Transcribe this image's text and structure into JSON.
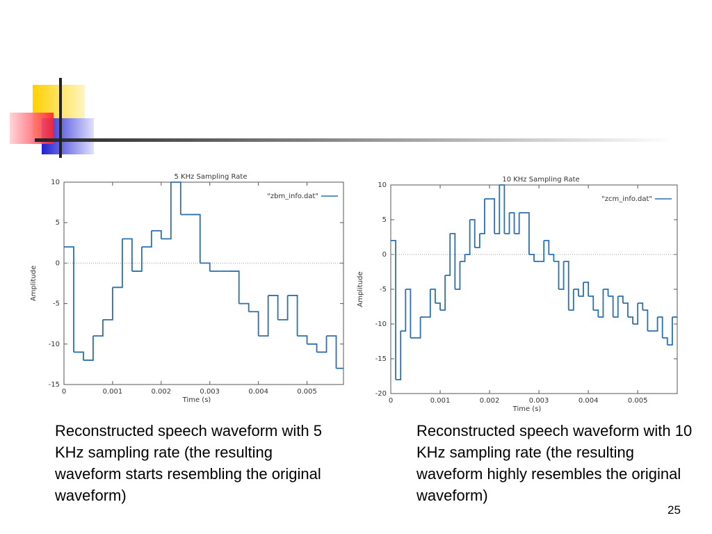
{
  "chart_data": [
    {
      "type": "step",
      "title": "5 KHz Sampling Rate",
      "x_label": "Time (s)",
      "y_label": "Amplitude",
      "x": [
        0,
        0.0002,
        0.0004,
        0.0006,
        0.0008,
        0.001,
        0.0012,
        0.0014,
        0.0016,
        0.0018,
        0.002,
        0.0022,
        0.0024,
        0.0026,
        0.0028,
        0.003,
        0.0032,
        0.0034,
        0.0036,
        0.0038,
        0.004,
        0.0042,
        0.0044,
        0.0046,
        0.0048,
        0.005,
        0.0052,
        0.0054,
        0.0056
      ],
      "series": [
        {
          "name": "\"zbm_info.dat\"",
          "color": "#2a6fb0",
          "values": [
            2,
            -11,
            -12,
            -9,
            -7,
            -3,
            3,
            -1,
            2,
            4,
            3,
            10,
            6,
            6,
            0,
            -1,
            -1,
            -1,
            -5,
            -6,
            -9,
            -4,
            -7,
            -4,
            -9,
            -10,
            -11,
            -9,
            -13
          ]
        }
      ],
      "xlim": [
        0,
        0.00575
      ],
      "xticks": [
        0,
        0.001,
        0.002,
        0.003,
        0.004,
        0.005
      ],
      "ylim": [
        -15,
        10
      ],
      "yticks": [
        -15,
        -10,
        -5,
        0,
        5,
        10
      ],
      "zero_line": true,
      "legend": "upper right"
    },
    {
      "type": "step",
      "title": "10 KHz Sampling Rate",
      "x_label": "Time (s)",
      "y_label": "Amplitude",
      "x": [
        0,
        0.0001,
        0.0002,
        0.0003,
        0.0004,
        0.0005,
        0.0006,
        0.0007,
        0.0008,
        0.0009,
        0.001,
        0.0011,
        0.0012,
        0.0013,
        0.0014,
        0.0015,
        0.0016,
        0.0017,
        0.0018,
        0.0019,
        0.002,
        0.0021,
        0.0022,
        0.0023,
        0.0024,
        0.0025,
        0.0026,
        0.0027,
        0.0028,
        0.0029,
        0.003,
        0.0031,
        0.0032,
        0.0033,
        0.0034,
        0.0035,
        0.0036,
        0.0037,
        0.0038,
        0.0039,
        0.004,
        0.0041,
        0.0042,
        0.0043,
        0.0044,
        0.0045,
        0.0046,
        0.0047,
        0.0048,
        0.0049,
        0.005,
        0.0051,
        0.0052,
        0.0053,
        0.0054,
        0.0055,
        0.0056,
        0.0057
      ],
      "series": [
        {
          "name": "\"zcm_info.dat\"",
          "color": "#2a6fb0",
          "values": [
            2,
            -18,
            -11,
            -5,
            -12,
            -12,
            -9,
            -9,
            -5,
            -7,
            -8,
            -3,
            3,
            -5,
            -1,
            0,
            5,
            1,
            3,
            8,
            8,
            3,
            10,
            3,
            6,
            3,
            6,
            6,
            0,
            -1,
            -1,
            2,
            0,
            -1,
            -5,
            -1,
            -8,
            -5,
            -6,
            -4,
            -6,
            -8,
            -9,
            -5,
            -6,
            -9,
            -6,
            -7,
            -9,
            -10,
            -7,
            -8,
            -11,
            -11,
            -9,
            -12,
            -13,
            -9
          ]
        }
      ],
      "xlim": [
        0,
        0.0058
      ],
      "xticks": [
        0,
        0.001,
        0.002,
        0.003,
        0.004,
        0.005
      ],
      "ylim": [
        -20,
        10
      ],
      "yticks": [
        -20,
        -15,
        -10,
        -5,
        0,
        5,
        10
      ],
      "zero_line": true,
      "legend": "upper right"
    }
  ],
  "captions": [
    "Reconstructed speech waveform with 5 KHz sampling rate (the resulting waveform starts resembling the original waveform)",
    "Reconstructed speech waveform with 10 KHz sampling rate (the resulting waveform highly resembles the original waveform)"
  ],
  "page_number": "25"
}
